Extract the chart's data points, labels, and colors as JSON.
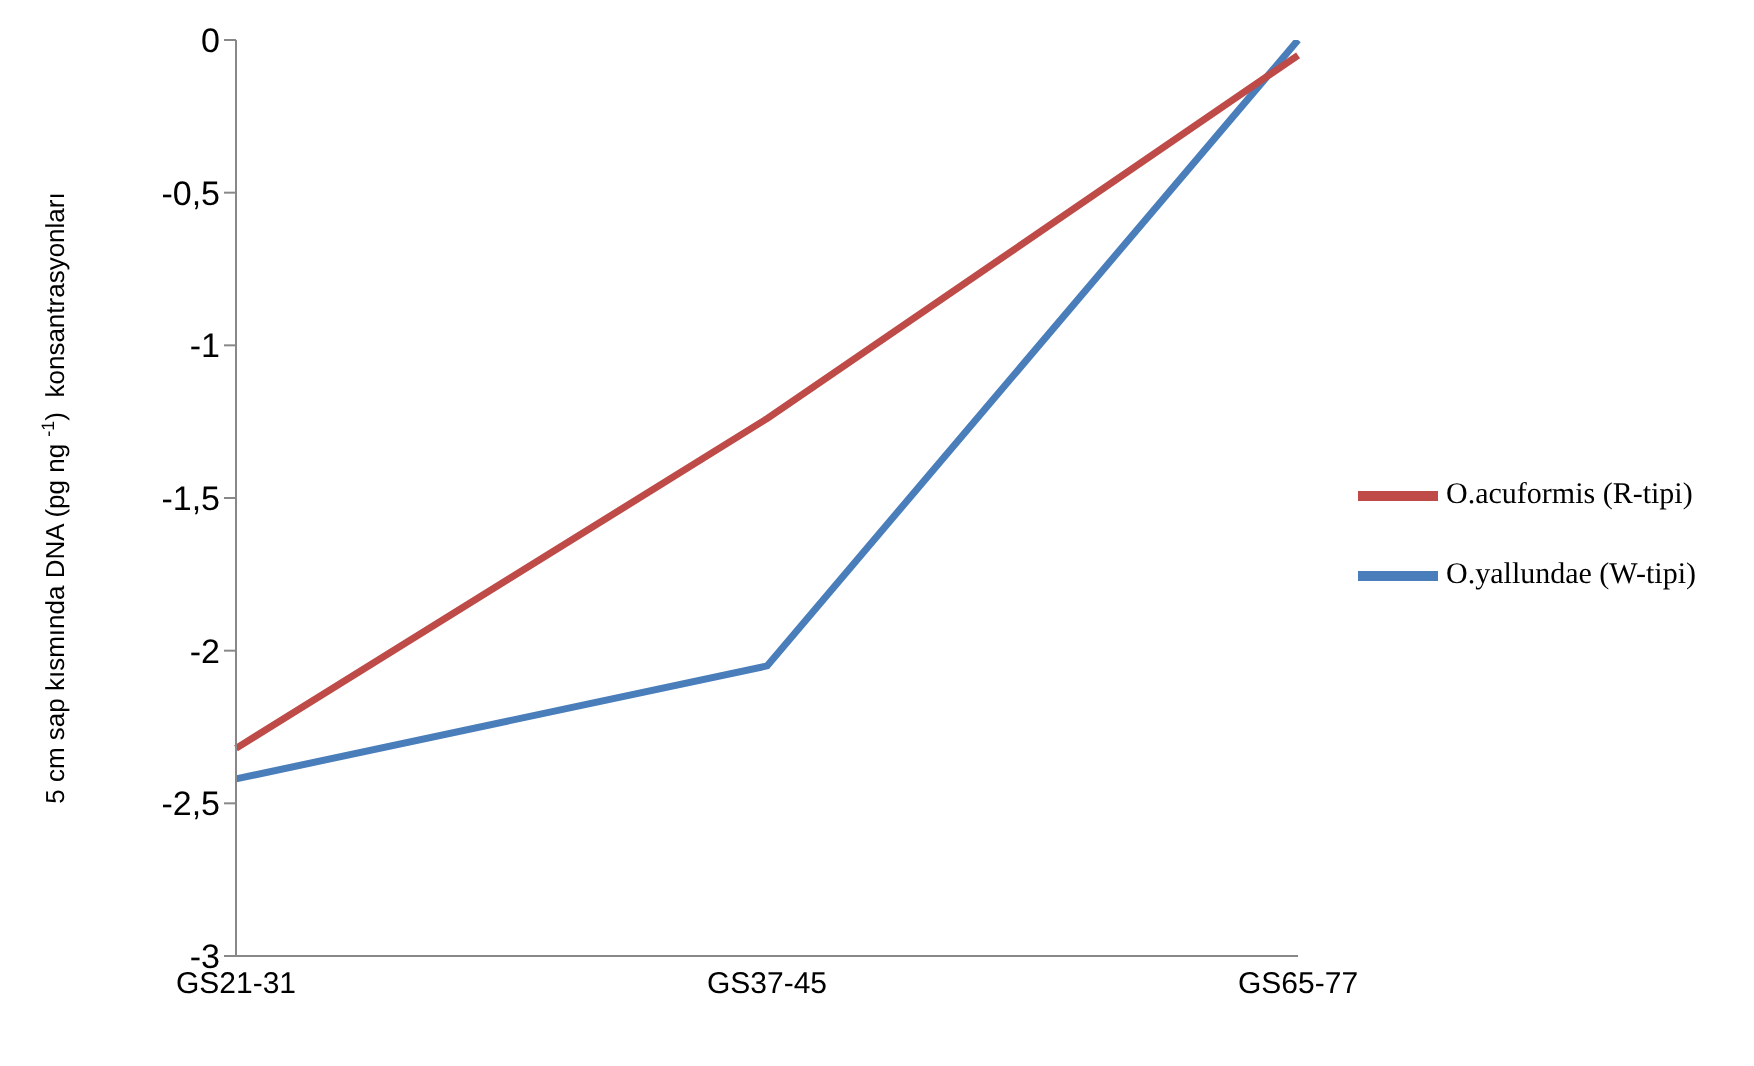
{
  "chart_data": {
    "type": "line",
    "ylabel": "5 cm sap kısmında DNA (pg ng $^{-1}$)  konsantrasyonları",
    "categories": [
      "GS21-31",
      "GS37-45",
      "GS65-77"
    ],
    "series": [
      {
        "name": "O.yallundae (W-tipi)",
        "color": "#4a7ebb",
        "values": [
          -2.42,
          -2.05,
          0
        ]
      },
      {
        "name": "O.acuformis (R-tipi)",
        "color": "#be4b48",
        "values": [
          -2.32,
          -1.24,
          -0.05
        ]
      }
    ],
    "ylim": [
      -3,
      0
    ],
    "yticks": [
      {
        "value": -3,
        "label": "-3"
      },
      {
        "value": -2.5,
        "label": "-2,5"
      },
      {
        "value": -2,
        "label": "-2"
      },
      {
        "value": -1.5,
        "label": "-1,5"
      },
      {
        "value": -1,
        "label": "-1"
      },
      {
        "value": -0.5,
        "label": "-0,5"
      },
      {
        "value": 0,
        "label": "0"
      }
    ],
    "grid": false,
    "legend": "right",
    "marker": "none",
    "line_style": "solid"
  }
}
